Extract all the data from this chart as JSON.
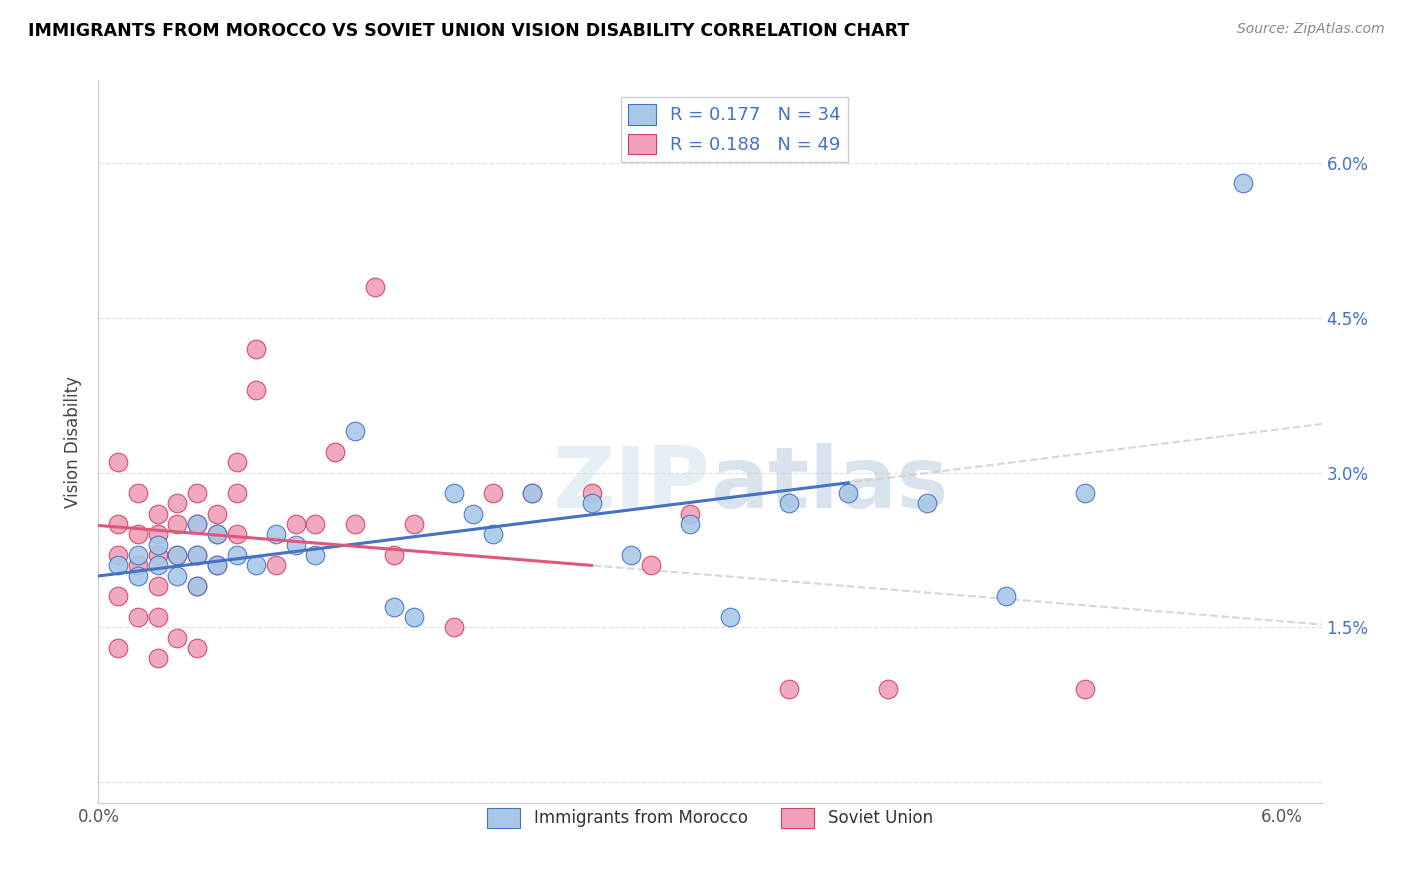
{
  "title": "IMMIGRANTS FROM MOROCCO VS SOVIET UNION VISION DISABILITY CORRELATION CHART",
  "source": "Source: ZipAtlas.com",
  "ylabel": "Vision Disability",
  "xlim": [
    0.0,
    0.062
  ],
  "ylim": [
    -0.002,
    0.068
  ],
  "color_blue": "#a8c8e8",
  "color_pink": "#f0a0b8",
  "color_blue_dark": "#4472c4",
  "color_pink_dark": "#d04060",
  "color_line_blue": "#4472c4",
  "color_line_pink": "#e05878",
  "color_dashed": "#cccccc",
  "legend_label1": "Immigrants from Morocco",
  "legend_label2": "Soviet Union",
  "morocco_x": [
    0.001,
    0.002,
    0.002,
    0.003,
    0.003,
    0.004,
    0.004,
    0.005,
    0.005,
    0.005,
    0.006,
    0.006,
    0.007,
    0.008,
    0.009,
    0.01,
    0.011,
    0.013,
    0.015,
    0.016,
    0.018,
    0.019,
    0.02,
    0.022,
    0.025,
    0.027,
    0.03,
    0.032,
    0.035,
    0.038,
    0.042,
    0.046,
    0.05,
    0.058
  ],
  "morocco_y": [
    0.021,
    0.022,
    0.02,
    0.023,
    0.021,
    0.022,
    0.02,
    0.025,
    0.022,
    0.019,
    0.024,
    0.021,
    0.022,
    0.021,
    0.024,
    0.023,
    0.022,
    0.034,
    0.017,
    0.016,
    0.028,
    0.026,
    0.024,
    0.028,
    0.027,
    0.022,
    0.025,
    0.016,
    0.027,
    0.028,
    0.027,
    0.018,
    0.028,
    0.058
  ],
  "soviet_x": [
    0.001,
    0.001,
    0.001,
    0.001,
    0.001,
    0.002,
    0.002,
    0.002,
    0.002,
    0.003,
    0.003,
    0.003,
    0.003,
    0.003,
    0.003,
    0.004,
    0.004,
    0.004,
    0.004,
    0.005,
    0.005,
    0.005,
    0.005,
    0.005,
    0.006,
    0.006,
    0.006,
    0.007,
    0.007,
    0.007,
    0.008,
    0.008,
    0.009,
    0.01,
    0.011,
    0.012,
    0.013,
    0.014,
    0.015,
    0.016,
    0.018,
    0.02,
    0.022,
    0.025,
    0.028,
    0.03,
    0.035,
    0.04,
    0.05
  ],
  "soviet_y": [
    0.031,
    0.025,
    0.022,
    0.018,
    0.013,
    0.028,
    0.024,
    0.021,
    0.016,
    0.026,
    0.024,
    0.022,
    0.019,
    0.016,
    0.012,
    0.027,
    0.025,
    0.022,
    0.014,
    0.028,
    0.025,
    0.022,
    0.019,
    0.013,
    0.026,
    0.024,
    0.021,
    0.031,
    0.028,
    0.024,
    0.042,
    0.038,
    0.021,
    0.025,
    0.025,
    0.032,
    0.025,
    0.048,
    0.022,
    0.025,
    0.015,
    0.028,
    0.028,
    0.028,
    0.021,
    0.026,
    0.009,
    0.009,
    0.009
  ]
}
